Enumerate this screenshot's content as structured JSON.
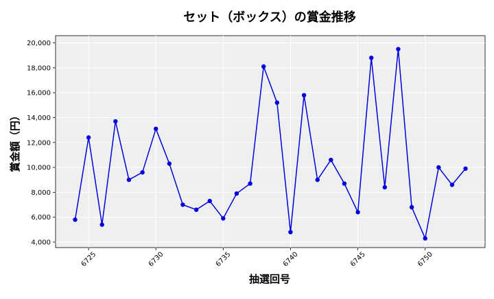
{
  "chart_data": {
    "type": "line",
    "title": "セット（ボックス）の賞金推移",
    "xlabel": "抽選回号",
    "ylabel": "賞金額（円）",
    "xlim": [
      6722.55,
      6754.45
    ],
    "ylim": [
      3560,
      20580
    ],
    "x_ticks": [
      6725,
      6730,
      6735,
      6740,
      6745,
      6750
    ],
    "y_ticks": [
      4000,
      6000,
      8000,
      10000,
      12000,
      14000,
      16000,
      18000,
      20000
    ],
    "y_tick_labels": [
      "4,000",
      "6,000",
      "8,000",
      "10,000",
      "12,000",
      "14,000",
      "16,000",
      "18,000",
      "20,000"
    ],
    "grid": true,
    "series": [
      {
        "color": "#0000dd",
        "x": [
          6724,
          6725,
          6726,
          6727,
          6728,
          6729,
          6730,
          6731,
          6732,
          6733,
          6734,
          6735,
          6736,
          6737,
          6738,
          6739,
          6740,
          6741,
          6742,
          6743,
          6744,
          6745,
          6746,
          6747,
          6748,
          6749,
          6750,
          6751,
          6752,
          6753
        ],
        "values": [
          5800,
          12400,
          5400,
          13700,
          9000,
          9600,
          13100,
          10300,
          7000,
          6600,
          7300,
          5900,
          7900,
          8700,
          18100,
          15200,
          4800,
          15800,
          9000,
          10600,
          8700,
          6400,
          18800,
          8400,
          19500,
          6800,
          4300,
          10000,
          8600,
          9900
        ]
      }
    ]
  }
}
